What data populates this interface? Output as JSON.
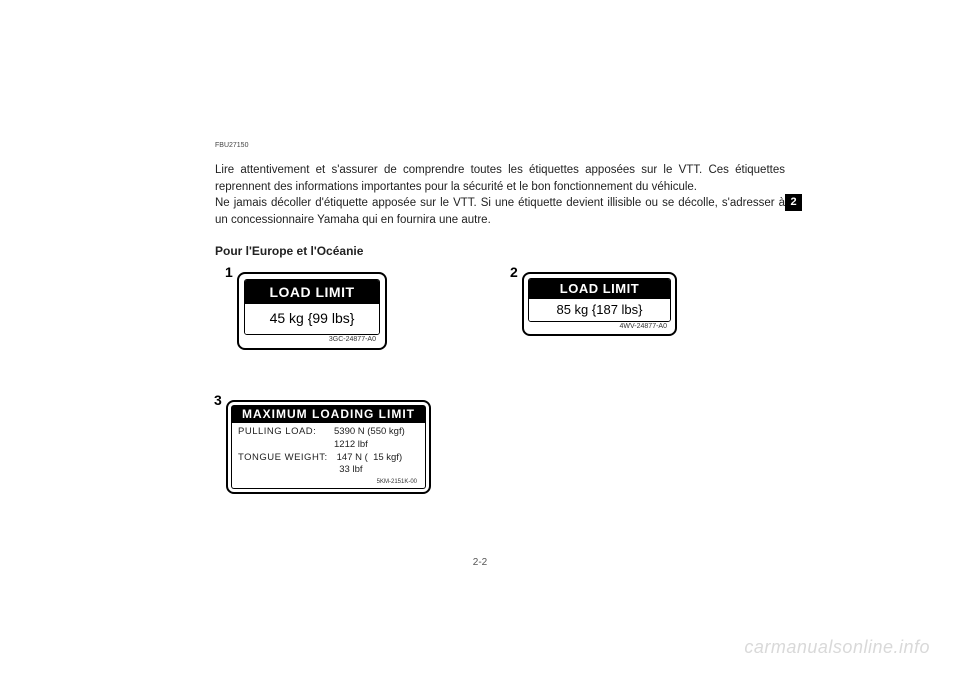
{
  "ref_code": "FBU27150",
  "paragraphs": {
    "p1": "Lire attentivement et s'assurer de comprendre toutes les étiquettes apposées sur le VTT. Ces étiquettes reprennent des informations importantes pour la sécurité et le bon fonctionnement du véhicule.",
    "p2": "Ne jamais décoller d'étiquette apposée sur le VTT. Si une étiquette devient illisible ou se décolle, s'adresser à un concessionnaire Yamaha qui en fournira une autre."
  },
  "side_tab": "2",
  "subtitle": "Pour l'Europe et l'Océanie",
  "label1": {
    "num": "1",
    "header": "LOAD LIMIT",
    "value": "45 kg {99 lbs}",
    "part": "3GC-24877-A0"
  },
  "label2": {
    "num": "2",
    "header": "LOAD LIMIT",
    "value": "85 kg {187 lbs}",
    "part": "4WV-24877-A0"
  },
  "label3": {
    "num": "3",
    "header": "MAXIMUM  LOADING  LIMIT",
    "pull_key": "PULLING  LOAD:",
    "pull_v1": "5390 N (550 kgf)",
    "pull_v2": "1212 lbf",
    "tongue_key": "TONGUE  WEIGHT:",
    "tongue_v1": " 147 N (  15 kgf)",
    "tongue_v2": "  33 lbf",
    "part": "5KM-2151K-00"
  },
  "page_number": "2-2",
  "watermark": "carmanualsonline.info"
}
